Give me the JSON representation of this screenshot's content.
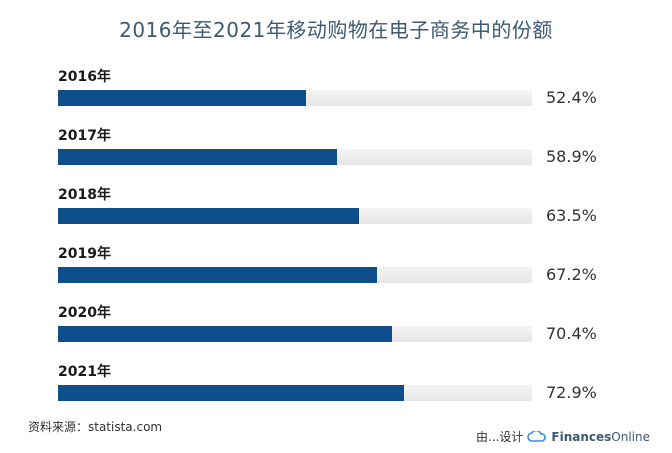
{
  "chart_data": {
    "type": "bar",
    "title": "2016年至2021年移动购物在电子商务中的份额",
    "orientation": "horizontal",
    "categories": [
      "2016年",
      "2017年",
      "2018年",
      "2019年",
      "2020年",
      "2021年"
    ],
    "values": [
      52.4,
      58.9,
      63.5,
      67.2,
      70.4,
      72.9
    ],
    "value_labels": [
      "52.4%",
      "58.9%",
      "63.5%",
      "67.2%",
      "70.4%",
      "72.9%"
    ],
    "xlim": [
      0,
      100
    ],
    "bar_color": "#0d4e8b",
    "track_color": "#e9e9e9"
  },
  "source_text": "资料来源：statista.com",
  "footer": {
    "designed_by": "由...设计",
    "brand_main": "Finances",
    "brand_suffix": "Online"
  }
}
